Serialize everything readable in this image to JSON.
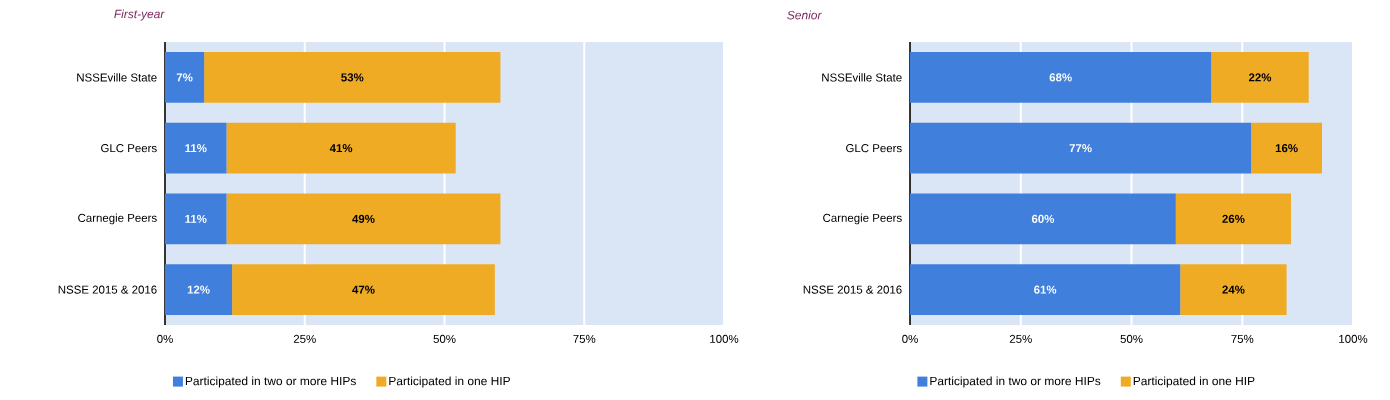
{
  "chart_data": [
    {
      "type": "bar",
      "orientation": "horizontal",
      "stacked": true,
      "title": "First-year",
      "categories": [
        "NSSEville State",
        "GLC Peers",
        "Carnegie Peers",
        "NSSE 2015 & 2016"
      ],
      "series": [
        {
          "name": "Participated in two or more HIPs",
          "color": "#4080dc",
          "values": [
            7,
            11,
            11,
            12
          ],
          "value_labels": [
            "7%",
            "11%",
            "11%",
            "12%"
          ]
        },
        {
          "name": "Participated in one HIP",
          "color": "#f0ab25",
          "values": [
            53,
            41,
            49,
            47
          ],
          "value_labels": [
            "53%",
            "41%",
            "49%",
            "47%"
          ]
        }
      ],
      "xlim": [
        0,
        100
      ],
      "xticks": [
        {
          "value": 0,
          "label": "0%"
        },
        {
          "value": 25,
          "label": "25%"
        },
        {
          "value": 50,
          "label": "50%"
        },
        {
          "value": 75,
          "label": "75%"
        },
        {
          "value": 100,
          "label": "100%"
        }
      ],
      "grid": "x",
      "legend": "bottom"
    },
    {
      "type": "bar",
      "orientation": "horizontal",
      "stacked": true,
      "title": "Senior",
      "categories": [
        "NSSEville State",
        "GLC Peers",
        "Carnegie Peers",
        "NSSE 2015 & 2016"
      ],
      "series": [
        {
          "name": "Participated in two or more HIPs",
          "color": "#4080dc",
          "values": [
            68,
            77,
            60,
            61
          ],
          "value_labels": [
            "68%",
            "77%",
            "60%",
            "61%"
          ]
        },
        {
          "name": "Participated in one HIP",
          "color": "#f0ab25",
          "values": [
            22,
            16,
            26,
            24
          ],
          "value_labels": [
            "22%",
            "16%",
            "26%",
            "24%"
          ]
        }
      ],
      "xlim": [
        0,
        100
      ],
      "xticks": [
        {
          "value": 0,
          "label": "0%"
        },
        {
          "value": 25,
          "label": "25%"
        },
        {
          "value": 50,
          "label": "50%"
        },
        {
          "value": 75,
          "label": "75%"
        },
        {
          "value": 100,
          "label": "100%"
        }
      ],
      "grid": "x",
      "legend": "bottom"
    }
  ]
}
